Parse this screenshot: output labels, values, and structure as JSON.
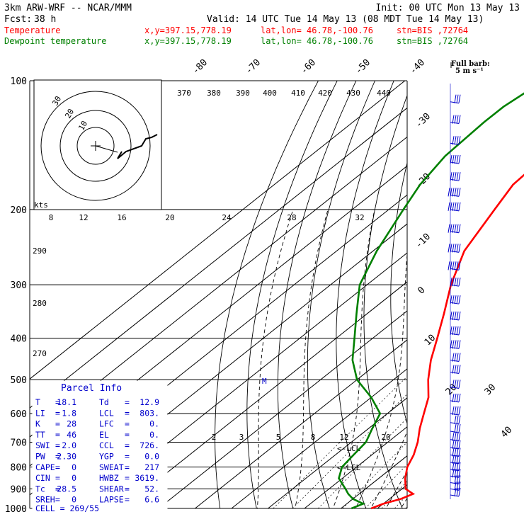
{
  "header": {
    "model": "3km ARW-WRF -- NCAR/MMM",
    "init": "Init: 00 UTC Mon 13 May 13",
    "fcst_label": "Fcst:",
    "fcst_hours": "38 h",
    "valid": "Valid: 14 UTC Tue 14 May 13 (08 MDT Tue 14 May 13)",
    "temp_label": "Temperature",
    "dew_label": "Dewpoint temperature",
    "xy": "x,y=397.15,778.19",
    "latlon": "lat,lon= 46.78,-100.76",
    "stn": "stn=BIS ,72764",
    "colors": {
      "temperature": "#ff0000",
      "dewpoint": "#008000",
      "text": "#000000",
      "parcel": "#0000cc"
    }
  },
  "barb_key": {
    "title": "Full barb:",
    "value": "5 m s⁻¹"
  },
  "hodograph": {
    "units": "kts",
    "rings": [
      "10",
      "20",
      "30"
    ]
  },
  "parcel_info": {
    "title": "Parcel Info",
    "rows": [
      [
        "T",
        "=",
        "18.1",
        "Td",
        "=",
        "12.9"
      ],
      [
        "LI",
        "=",
        "1.8",
        "LCL",
        "=",
        "803."
      ],
      [
        "K",
        "=",
        "28",
        "LFC",
        "=",
        "0."
      ],
      [
        "TT",
        "=",
        "46",
        "EL",
        "=",
        "0."
      ],
      [
        "SWI",
        "=",
        "2.0",
        "CCL",
        "=",
        "726."
      ],
      [
        "PW",
        "=",
        "2.30",
        "YGP",
        "=",
        "0.0"
      ],
      [
        "CAPE",
        "=",
        "0",
        "SWEAT",
        "=",
        "217"
      ],
      [
        "CIN",
        "=",
        "0",
        "HWBZ",
        "=",
        "3619."
      ],
      [
        "Tc",
        "=",
        "28.5",
        "SHEAR",
        "=",
        "52."
      ],
      [
        "SREH",
        "=",
        "0",
        "LAPSE",
        "=",
        "6.6"
      ]
    ],
    "cell": "CELL = 269/55"
  },
  "chart_data": {
    "type": "line",
    "title": "",
    "ylabel": "",
    "y_axis": "pressure (hPa), log scale",
    "pressure_levels": [
      100,
      200,
      300,
      400,
      500,
      600,
      700,
      800,
      900,
      1000
    ],
    "isotherm_labels": [
      "-80",
      "-70",
      "-60",
      "-50",
      "-40",
      "-30",
      "-20",
      "-10",
      "0",
      "10",
      "20",
      "30",
      "40"
    ],
    "theta_e_labels": [
      "370",
      "380",
      "390",
      "400",
      "410",
      "420",
      "430",
      "440"
    ],
    "dry_adiabat_labels": [
      "290",
      "280",
      "270"
    ],
    "mixing_ratio_labels_upper": [
      "8",
      "12",
      "16",
      "20",
      "24",
      "28",
      "32"
    ],
    "mixing_ratio_labels_lower": [
      "2",
      "3",
      "5",
      "8",
      "12",
      "20"
    ],
    "lcl_labels": [
      "<-LCL",
      "<-LCL"
    ],
    "m_marker": "M",
    "series": [
      {
        "name": "Temperature",
        "points": [
          [
            1000,
            18.3
          ],
          [
            975,
            20.0
          ],
          [
            950,
            23.2
          ],
          [
            925,
            24.8
          ],
          [
            900,
            21.0
          ],
          [
            850,
            17.2
          ],
          [
            800,
            13.9
          ],
          [
            750,
            11.5
          ],
          [
            700,
            8.2
          ],
          [
            650,
            4.0
          ],
          [
            600,
            0.0
          ],
          [
            550,
            -4.3
          ],
          [
            500,
            -10.5
          ],
          [
            450,
            -16.5
          ],
          [
            400,
            -22.3
          ],
          [
            350,
            -29.0
          ],
          [
            300,
            -37.0
          ],
          [
            250,
            -45.0
          ],
          [
            200,
            -51.0
          ],
          [
            175,
            -54.5
          ],
          [
            150,
            -55.5
          ],
          [
            125,
            -55.0
          ],
          [
            115,
            -54.0
          ],
          [
            100,
            -54.0
          ]
        ]
      },
      {
        "name": "Dewpoint temperature",
        "points": [
          [
            1000,
            12.9
          ],
          [
            975,
            14.5
          ],
          [
            950,
            10.0
          ],
          [
            925,
            7.0
          ],
          [
            900,
            4.5
          ],
          [
            850,
            -1.0
          ],
          [
            800,
            -4.0
          ],
          [
            750,
            -5.0
          ],
          [
            700,
            -6.0
          ],
          [
            650,
            -9.0
          ],
          [
            600,
            -12.0
          ],
          [
            550,
            -20.0
          ],
          [
            500,
            -30.0
          ],
          [
            450,
            -38.0
          ],
          [
            400,
            -45.0
          ],
          [
            350,
            -53.0
          ],
          [
            300,
            -62.0
          ],
          [
            250,
            -69.0
          ],
          [
            200,
            -76.0
          ],
          [
            175,
            -80.0
          ],
          [
            150,
            -83.0
          ],
          [
            125,
            -84.0
          ],
          [
            115,
            -84.0
          ],
          [
            100,
            -82.0
          ]
        ]
      }
    ],
    "wind_barbs": [
      {
        "p": 990,
        "kts": 15
      },
      {
        "p": 960,
        "kts": 20
      },
      {
        "p": 930,
        "kts": 25
      },
      {
        "p": 900,
        "kts": 30
      },
      {
        "p": 870,
        "kts": 30
      },
      {
        "p": 840,
        "kts": 35
      },
      {
        "p": 810,
        "kts": 35
      },
      {
        "p": 780,
        "kts": 40
      },
      {
        "p": 750,
        "kts": 40
      },
      {
        "p": 720,
        "kts": 35
      },
      {
        "p": 690,
        "kts": 35
      },
      {
        "p": 660,
        "kts": 30
      },
      {
        "p": 630,
        "kts": 30
      },
      {
        "p": 600,
        "kts": 35
      },
      {
        "p": 560,
        "kts": 35
      },
      {
        "p": 520,
        "kts": 40
      },
      {
        "p": 480,
        "kts": 40
      },
      {
        "p": 450,
        "kts": 40
      },
      {
        "p": 420,
        "kts": 45
      },
      {
        "p": 390,
        "kts": 45
      },
      {
        "p": 360,
        "kts": 50
      },
      {
        "p": 330,
        "kts": 50
      },
      {
        "p": 300,
        "kts": 50
      },
      {
        "p": 275,
        "kts": 55
      },
      {
        "p": 250,
        "kts": 55
      },
      {
        "p": 225,
        "kts": 55
      },
      {
        "p": 200,
        "kts": 55
      },
      {
        "p": 185,
        "kts": 55
      },
      {
        "p": 170,
        "kts": 50
      },
      {
        "p": 155,
        "kts": 45
      },
      {
        "p": 140,
        "kts": 40
      },
      {
        "p": 125,
        "kts": 35
      },
      {
        "p": 112,
        "kts": 30
      }
    ],
    "hodograph_trace": [
      [
        166,
        224
      ],
      [
        178,
        214
      ],
      [
        200,
        206
      ],
      [
        206,
        196
      ],
      [
        214,
        194
      ],
      [
        222,
        190
      ]
    ]
  }
}
